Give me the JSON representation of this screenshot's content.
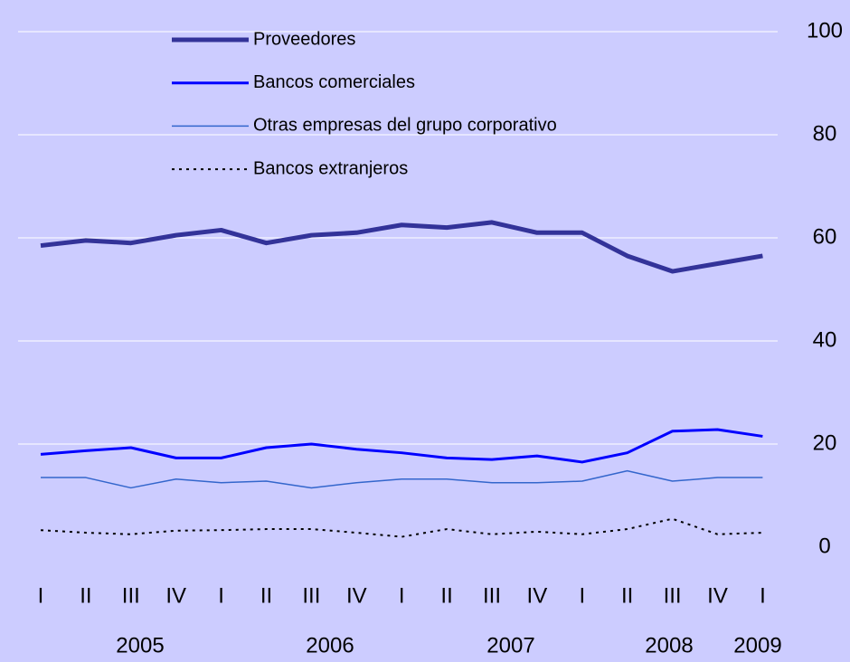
{
  "chart_data": {
    "type": "line",
    "categories": [
      "I",
      "II",
      "III",
      "IV",
      "I",
      "II",
      "III",
      "IV",
      "I",
      "II",
      "III",
      "IV",
      "I",
      "II",
      "III",
      "IV",
      "I"
    ],
    "years": [
      "2005",
      "2006",
      "2007",
      "2008",
      "2009"
    ],
    "series": [
      {
        "name": "Proveedores",
        "color": "#333399",
        "values": [
          58.5,
          59.5,
          59,
          60.5,
          61.5,
          59,
          60.5,
          61,
          62.5,
          62,
          63,
          61,
          61,
          56.5,
          53.5,
          55,
          56.5
        ]
      },
      {
        "name": "Bancos comerciales",
        "color": "#0000ff",
        "values": [
          18,
          18.7,
          19.3,
          17.3,
          17.3,
          19.3,
          20,
          19,
          18.3,
          17.3,
          17,
          17.7,
          16.5,
          18.3,
          22.5,
          22.8,
          21.5
        ]
      },
      {
        "name": "Otras empresas del grupo corporativo",
        "color": "#3366cc",
        "values": [
          13.5,
          13.5,
          11.5,
          13.2,
          12.5,
          12.8,
          11.5,
          12.5,
          13.2,
          13.2,
          12.5,
          12.5,
          12.8,
          14.8,
          12.8,
          13.5,
          13.5
        ]
      },
      {
        "name": "Bancos extranjeros",
        "color": "#000000",
        "values": [
          3.3,
          2.8,
          2.5,
          3.2,
          3.3,
          3.5,
          3.5,
          2.8,
          2,
          3.5,
          2.5,
          3,
          2.5,
          3.5,
          5.5,
          2.5,
          2.8
        ]
      }
    ],
    "ylim": [
      0,
      100
    ],
    "yticks": [
      0,
      20,
      40,
      60,
      80,
      100
    ],
    "grid": true
  }
}
